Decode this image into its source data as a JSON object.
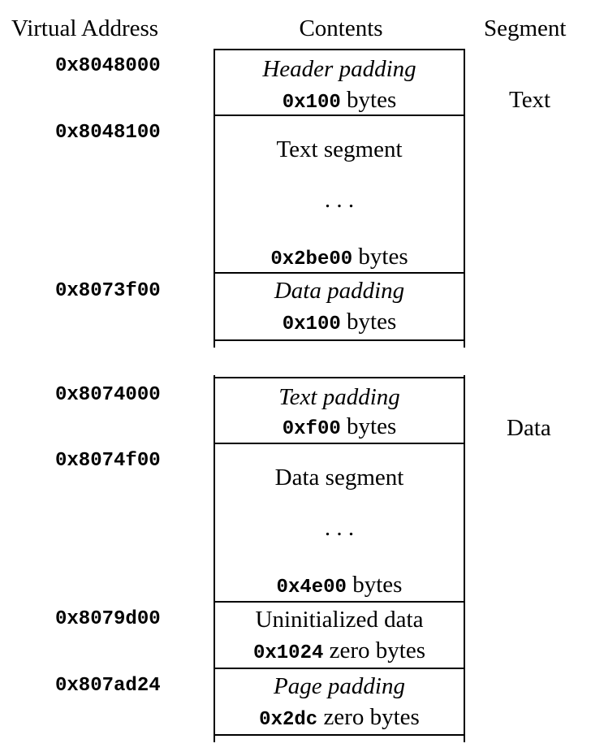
{
  "headers": {
    "virtual_address": "Virtual Address",
    "contents": "Contents",
    "segment": "Segment"
  },
  "segments": {
    "text": "Text",
    "data": "Data"
  },
  "rows": [
    {
      "address": "0x8048000",
      "name": "Header padding",
      "size": "0x100",
      "unit": "bytes"
    },
    {
      "address": "0x8048100",
      "name": "Text segment",
      "ellipsis": ". . .",
      "size": "0x2be00",
      "unit": "bytes"
    },
    {
      "address": "0x8073f00",
      "name": "Data padding",
      "size": "0x100",
      "unit": "bytes"
    },
    {
      "address": "0x8074000",
      "name": "Text padding",
      "size": "0xf00",
      "unit": "bytes"
    },
    {
      "address": "0x8074f00",
      "name": "Data segment",
      "ellipsis": ". . .",
      "size": "0x4e00",
      "unit": "bytes"
    },
    {
      "address": "0x8079d00",
      "name": "Uninitialized data",
      "size": "0x1024",
      "unit": "zero bytes"
    },
    {
      "address": "0x807ad24",
      "name": "Page padding",
      "size": "0x2dc",
      "unit": "zero bytes"
    }
  ]
}
